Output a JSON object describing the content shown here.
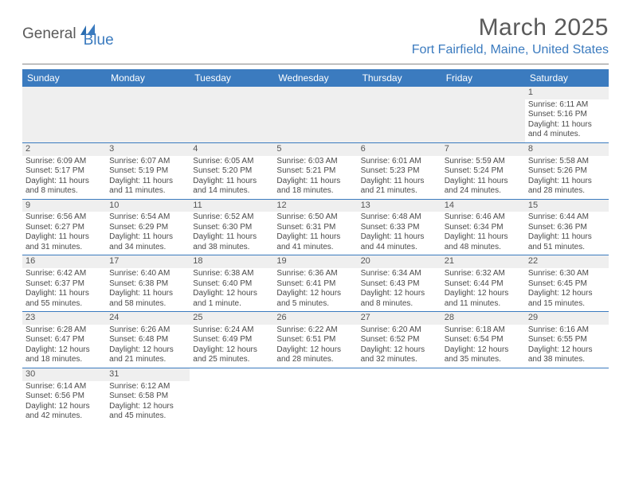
{
  "logo": {
    "text_a": "General",
    "text_b": "Blue"
  },
  "title": "March 2025",
  "location": "Fort Fairfield, Maine, United States",
  "colors": {
    "header_bg": "#3b7bbf",
    "header_fg": "#ffffff",
    "daynum_bg": "#efefef",
    "text": "#4a4a4a",
    "rule": "#3b7bbf",
    "title_color": "#5a5a5a"
  },
  "day_names": [
    "Sunday",
    "Monday",
    "Tuesday",
    "Wednesday",
    "Thursday",
    "Friday",
    "Saturday"
  ],
  "leading_blanks": 6,
  "days": [
    {
      "n": 1,
      "sunrise": "6:11 AM",
      "sunset": "5:16 PM",
      "daylight": "11 hours and 4 minutes."
    },
    {
      "n": 2,
      "sunrise": "6:09 AM",
      "sunset": "5:17 PM",
      "daylight": "11 hours and 8 minutes."
    },
    {
      "n": 3,
      "sunrise": "6:07 AM",
      "sunset": "5:19 PM",
      "daylight": "11 hours and 11 minutes."
    },
    {
      "n": 4,
      "sunrise": "6:05 AM",
      "sunset": "5:20 PM",
      "daylight": "11 hours and 14 minutes."
    },
    {
      "n": 5,
      "sunrise": "6:03 AM",
      "sunset": "5:21 PM",
      "daylight": "11 hours and 18 minutes."
    },
    {
      "n": 6,
      "sunrise": "6:01 AM",
      "sunset": "5:23 PM",
      "daylight": "11 hours and 21 minutes."
    },
    {
      "n": 7,
      "sunrise": "5:59 AM",
      "sunset": "5:24 PM",
      "daylight": "11 hours and 24 minutes."
    },
    {
      "n": 8,
      "sunrise": "5:58 AM",
      "sunset": "5:26 PM",
      "daylight": "11 hours and 28 minutes."
    },
    {
      "n": 9,
      "sunrise": "6:56 AM",
      "sunset": "6:27 PM",
      "daylight": "11 hours and 31 minutes."
    },
    {
      "n": 10,
      "sunrise": "6:54 AM",
      "sunset": "6:29 PM",
      "daylight": "11 hours and 34 minutes."
    },
    {
      "n": 11,
      "sunrise": "6:52 AM",
      "sunset": "6:30 PM",
      "daylight": "11 hours and 38 minutes."
    },
    {
      "n": 12,
      "sunrise": "6:50 AM",
      "sunset": "6:31 PM",
      "daylight": "11 hours and 41 minutes."
    },
    {
      "n": 13,
      "sunrise": "6:48 AM",
      "sunset": "6:33 PM",
      "daylight": "11 hours and 44 minutes."
    },
    {
      "n": 14,
      "sunrise": "6:46 AM",
      "sunset": "6:34 PM",
      "daylight": "11 hours and 48 minutes."
    },
    {
      "n": 15,
      "sunrise": "6:44 AM",
      "sunset": "6:36 PM",
      "daylight": "11 hours and 51 minutes."
    },
    {
      "n": 16,
      "sunrise": "6:42 AM",
      "sunset": "6:37 PM",
      "daylight": "11 hours and 55 minutes."
    },
    {
      "n": 17,
      "sunrise": "6:40 AM",
      "sunset": "6:38 PM",
      "daylight": "11 hours and 58 minutes."
    },
    {
      "n": 18,
      "sunrise": "6:38 AM",
      "sunset": "6:40 PM",
      "daylight": "12 hours and 1 minute."
    },
    {
      "n": 19,
      "sunrise": "6:36 AM",
      "sunset": "6:41 PM",
      "daylight": "12 hours and 5 minutes."
    },
    {
      "n": 20,
      "sunrise": "6:34 AM",
      "sunset": "6:43 PM",
      "daylight": "12 hours and 8 minutes."
    },
    {
      "n": 21,
      "sunrise": "6:32 AM",
      "sunset": "6:44 PM",
      "daylight": "12 hours and 11 minutes."
    },
    {
      "n": 22,
      "sunrise": "6:30 AM",
      "sunset": "6:45 PM",
      "daylight": "12 hours and 15 minutes."
    },
    {
      "n": 23,
      "sunrise": "6:28 AM",
      "sunset": "6:47 PM",
      "daylight": "12 hours and 18 minutes."
    },
    {
      "n": 24,
      "sunrise": "6:26 AM",
      "sunset": "6:48 PM",
      "daylight": "12 hours and 21 minutes."
    },
    {
      "n": 25,
      "sunrise": "6:24 AM",
      "sunset": "6:49 PM",
      "daylight": "12 hours and 25 minutes."
    },
    {
      "n": 26,
      "sunrise": "6:22 AM",
      "sunset": "6:51 PM",
      "daylight": "12 hours and 28 minutes."
    },
    {
      "n": 27,
      "sunrise": "6:20 AM",
      "sunset": "6:52 PM",
      "daylight": "12 hours and 32 minutes."
    },
    {
      "n": 28,
      "sunrise": "6:18 AM",
      "sunset": "6:54 PM",
      "daylight": "12 hours and 35 minutes."
    },
    {
      "n": 29,
      "sunrise": "6:16 AM",
      "sunset": "6:55 PM",
      "daylight": "12 hours and 38 minutes."
    },
    {
      "n": 30,
      "sunrise": "6:14 AM",
      "sunset": "6:56 PM",
      "daylight": "12 hours and 42 minutes."
    },
    {
      "n": 31,
      "sunrise": "6:12 AM",
      "sunset": "6:58 PM",
      "daylight": "12 hours and 45 minutes."
    }
  ],
  "labels": {
    "sunrise": "Sunrise:",
    "sunset": "Sunset:",
    "daylight": "Daylight:"
  }
}
